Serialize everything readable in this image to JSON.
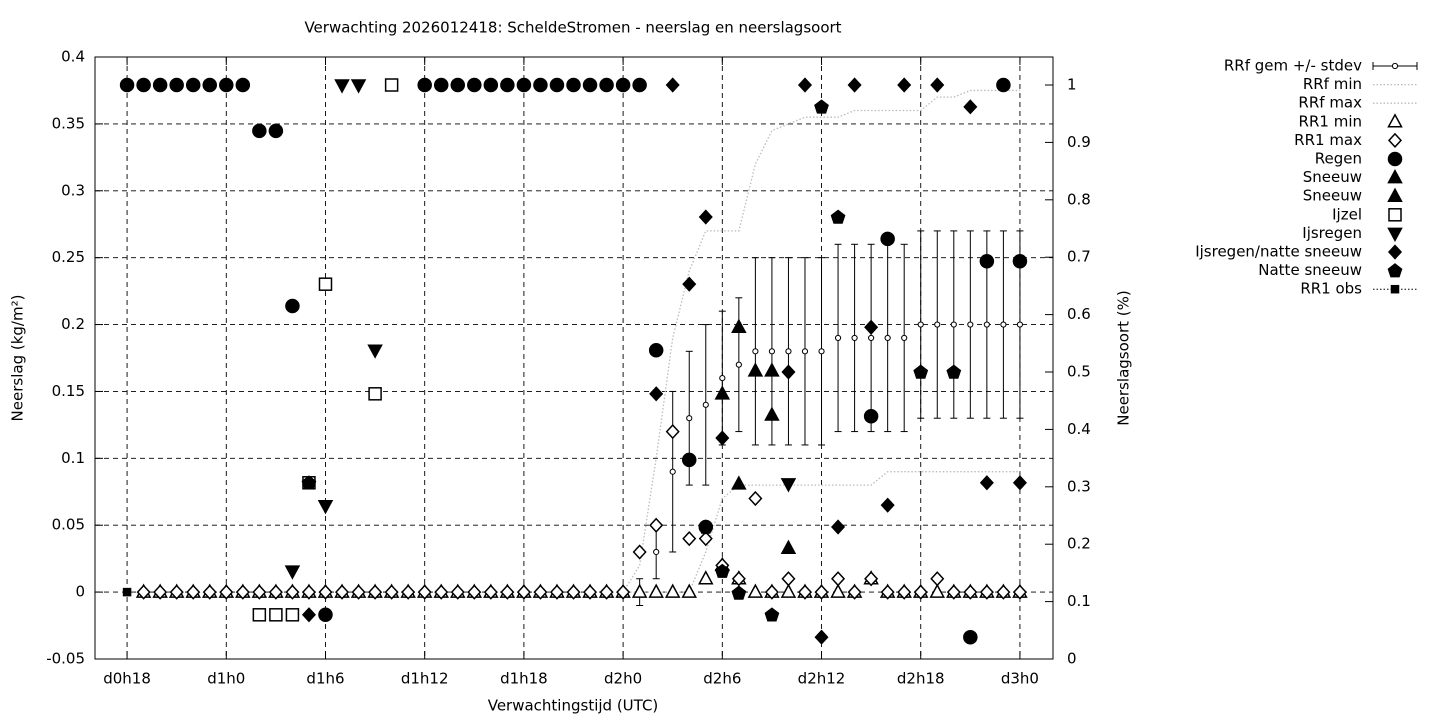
{
  "chart_data": {
    "type": "scatter",
    "title": "Verwachting 2026012418: ScheldeStromen - neerslag en neerslagsoort",
    "x_label": "Verwachtingstijd (UTC)",
    "y_label": "Neerslag (kg/m²)",
    "y2_label": "Neerslagsoort (%)",
    "xlim": [
      16.06,
      74
    ],
    "xticks": [
      {
        "value": 18,
        "label": "d0h18"
      },
      {
        "value": 24,
        "label": "d1h0"
      },
      {
        "value": 30,
        "label": "d1h6"
      },
      {
        "value": 36,
        "label": "d1h12"
      },
      {
        "value": 42,
        "label": "d1h18"
      },
      {
        "value": 48,
        "label": "d2h0"
      },
      {
        "value": 54,
        "label": "d2h6"
      },
      {
        "value": 60,
        "label": "d2h12"
      },
      {
        "value": 66,
        "label": "d2h18"
      },
      {
        "value": 72,
        "label": "d3h0"
      }
    ],
    "ylim": [
      -0.05,
      0.4
    ],
    "yticks": [
      -0.05,
      0,
      0.05,
      0.1,
      0.15,
      0.2,
      0.25,
      0.3,
      0.35,
      0.4
    ],
    "y2lim": [
      0,
      1.0488
    ],
    "y2ticks": [
      0,
      0.1,
      0.2,
      0.3,
      0.4,
      0.5,
      0.6,
      0.7,
      0.8,
      0.9,
      1
    ],
    "grid": true,
    "series": [
      {
        "name": "RRf gem +/- stdev",
        "style": "errorbar",
        "color": "#000000",
        "x": [
          18,
          19,
          20,
          21,
          22,
          23,
          24,
          25,
          26,
          27,
          28,
          29,
          30,
          31,
          32,
          33,
          34,
          35,
          36,
          37,
          38,
          39,
          40,
          41,
          42,
          43,
          44,
          45,
          46,
          47,
          48,
          49,
          50,
          51,
          52,
          53,
          54,
          55,
          56,
          57,
          58,
          59,
          60,
          61,
          62,
          63,
          64,
          65,
          66,
          67,
          68,
          69,
          70,
          71,
          72
        ],
        "values": [
          0,
          0,
          0,
          0,
          0,
          0,
          0,
          0,
          0,
          0,
          0,
          0,
          0,
          0,
          0,
          0,
          0,
          0,
          0,
          0,
          0,
          0,
          0,
          0,
          0,
          0,
          0,
          0,
          0,
          0,
          0,
          0,
          0.03,
          0.09,
          0.13,
          0.14,
          0.16,
          0.17,
          0.18,
          0.18,
          0.18,
          0.18,
          0.18,
          0.19,
          0.19,
          0.19,
          0.19,
          0.19,
          0.2,
          0.2,
          0.2,
          0.2,
          0.2,
          0.2,
          0.2
        ],
        "errors": [
          0,
          0,
          0,
          0,
          0,
          0,
          0,
          0,
          0,
          0,
          0,
          0,
          0,
          0,
          0,
          0,
          0,
          0,
          0,
          0,
          0,
          0,
          0,
          0,
          0,
          0,
          0,
          0,
          0,
          0,
          0,
          0.01,
          0.02,
          0.06,
          0.05,
          0.06,
          0.05,
          0.05,
          0.07,
          0.07,
          0.07,
          0.07,
          0.07,
          0.07,
          0.07,
          0.07,
          0.07,
          0.07,
          0.07,
          0.07,
          0.07,
          0.07,
          0.07,
          0.07,
          0.07
        ]
      },
      {
        "name": "RRf min",
        "style": "line",
        "color": "#bbbbbb",
        "x": [
          48,
          49,
          50,
          51,
          52,
          53,
          54,
          55,
          56,
          57,
          58,
          59,
          60,
          61,
          62,
          63,
          64,
          65,
          66,
          67,
          68,
          69,
          70,
          71,
          72
        ],
        "values": [
          0,
          0,
          0,
          0,
          0,
          0.03,
          0.07,
          0.08,
          0.08,
          0.08,
          0.08,
          0.08,
          0.08,
          0.08,
          0.08,
          0.08,
          0.09,
          0.09,
          0.09,
          0.09,
          0.09,
          0.09,
          0.09,
          0.09,
          0.09
        ]
      },
      {
        "name": "RRf max",
        "style": "line",
        "color": "#bbbbbb",
        "x": [
          48,
          49,
          50,
          51,
          52,
          53,
          54,
          55,
          56,
          57,
          58,
          59,
          60,
          61,
          62,
          63,
          64,
          65,
          66,
          67,
          68,
          69,
          70,
          71,
          72
        ],
        "values": [
          0,
          0.02,
          0.1,
          0.19,
          0.24,
          0.27,
          0.27,
          0.27,
          0.32,
          0.345,
          0.35,
          0.355,
          0.355,
          0.355,
          0.36,
          0.36,
          0.36,
          0.36,
          0.36,
          0.37,
          0.37,
          0.375,
          0.375,
          0.375,
          0.375
        ]
      },
      {
        "name": "RR1 min",
        "style": "points",
        "marker": "triangle-up",
        "filled": false,
        "color": "#000000",
        "x": [
          19,
          20,
          21,
          22,
          23,
          24,
          25,
          26,
          27,
          28,
          29,
          30,
          31,
          32,
          33,
          34,
          35,
          36,
          37,
          38,
          39,
          40,
          41,
          42,
          43,
          44,
          45,
          46,
          47,
          48,
          49,
          50,
          51,
          52,
          53,
          54,
          55,
          56,
          57,
          58,
          59,
          60,
          61,
          62,
          63,
          64,
          65,
          66,
          67,
          68,
          69,
          70,
          71,
          72
        ],
        "values": [
          0,
          0,
          0,
          0,
          0,
          0,
          0,
          0,
          0,
          0,
          0,
          0,
          0,
          0,
          0,
          0,
          0,
          0,
          0,
          0,
          0,
          0,
          0,
          0,
          0,
          0,
          0,
          0,
          0,
          0,
          0,
          0,
          0,
          0,
          0.01,
          0.02,
          0.01,
          0,
          0,
          0,
          0,
          0,
          0,
          0,
          0.01,
          0,
          0,
          0,
          0,
          0,
          0,
          0,
          0,
          0
        ]
      },
      {
        "name": "RR1 max",
        "style": "points",
        "marker": "diamond",
        "filled": false,
        "color": "#000000",
        "x": [
          19,
          20,
          21,
          22,
          23,
          24,
          25,
          26,
          27,
          28,
          29,
          30,
          31,
          32,
          33,
          34,
          35,
          36,
          37,
          38,
          39,
          40,
          41,
          42,
          43,
          44,
          45,
          46,
          47,
          48,
          49,
          50,
          51,
          52,
          53,
          54,
          55,
          56,
          57,
          58,
          59,
          60,
          61,
          62,
          63,
          64,
          65,
          66,
          67,
          68,
          69,
          70,
          71,
          72
        ],
        "values": [
          0,
          0,
          0,
          0,
          0,
          0,
          0,
          0,
          0,
          0,
          0,
          0,
          0,
          0,
          0,
          0,
          0,
          0,
          0,
          0,
          0,
          0,
          0,
          0,
          0,
          0,
          0,
          0,
          0,
          0,
          0.03,
          0.05,
          0.12,
          0.04,
          0.04,
          0.02,
          0.01,
          0.07,
          0,
          0.01,
          0,
          0,
          0.01,
          0,
          0.01,
          0,
          0,
          0,
          0.01,
          0,
          0,
          0,
          0,
          0
        ]
      },
      {
        "name": "Regen",
        "style": "points",
        "marker": "circle",
        "filled": true,
        "axis": "y2",
        "color": "#000000",
        "x": [
          18,
          19,
          20,
          21,
          22,
          23,
          24,
          25,
          26,
          27,
          28,
          30,
          36,
          37,
          38,
          39,
          40,
          41,
          42,
          43,
          44,
          45,
          46,
          47,
          48,
          49,
          50,
          52,
          53,
          63,
          64,
          69,
          70,
          71,
          72
        ],
        "values": [
          1,
          1,
          1,
          1,
          1,
          1,
          1,
          1,
          0.92,
          0.92,
          0.615,
          0.077,
          1,
          1,
          1,
          1,
          1,
          1,
          1,
          1,
          1,
          1,
          1,
          1,
          1,
          1,
          0.538,
          0.347,
          0.23,
          0.423,
          0.732,
          0.038,
          0.693,
          1,
          0.693
        ]
      },
      {
        "name": "Sneeuw",
        "style": "points",
        "marker": "triangle-up",
        "filled": true,
        "axis": "y2",
        "color": "#000000",
        "x": [
          54,
          55,
          56,
          57
        ],
        "values": [
          0.462,
          0.578,
          0.502,
          0.502
        ]
      },
      {
        "name": "Sneeuw",
        "style": "points",
        "marker": "triangle-up",
        "filled": true,
        "axis": "y2",
        "color": "#000000",
        "x": [
          55,
          57,
          58
        ],
        "values": [
          0.305,
          0.425,
          0.193
        ]
      },
      {
        "name": "Ijzel",
        "style": "points",
        "marker": "square",
        "filled": false,
        "axis": "y2",
        "color": "#000000",
        "x": [
          26,
          27,
          28,
          29,
          30,
          33,
          34
        ],
        "values": [
          0.077,
          0.077,
          0.077,
          0.307,
          0.653,
          0.462,
          1
        ]
      },
      {
        "name": "Ijsregen",
        "style": "points",
        "marker": "triangle-down",
        "filled": true,
        "axis": "y2",
        "color": "#000000",
        "x": [
          28,
          30,
          31,
          32,
          33,
          58
        ],
        "values": [
          0.153,
          0.267,
          1,
          1,
          0.538,
          0.305
        ]
      },
      {
        "name": "Ijsregen/natte sneeuw",
        "style": "points",
        "marker": "diamond",
        "filled": true,
        "axis": "y2",
        "color": "#000000",
        "x": [
          29,
          50,
          51,
          52,
          53,
          54,
          58,
          59,
          60,
          61,
          62,
          63,
          64,
          65,
          67,
          69,
          70,
          72
        ],
        "values": [
          0.077,
          0.462,
          1,
          0.653,
          0.77,
          0.385,
          0.5,
          1,
          0.038,
          0.23,
          1,
          0.578,
          0.268,
          1,
          1,
          0.962,
          0.307,
          0.307
        ]
      },
      {
        "name": "Natte sneeuw",
        "style": "points",
        "marker": "pentagon",
        "filled": true,
        "axis": "y2",
        "color": "#000000",
        "x": [
          29,
          53,
          54,
          55,
          57,
          60,
          61,
          66,
          68
        ],
        "values": [
          0.307,
          0.23,
          0.153,
          0.115,
          0.077,
          0.962,
          0.77,
          0.5,
          0.5
        ]
      },
      {
        "name": "RR1 obs",
        "style": "points",
        "marker": "small-square",
        "filled": true,
        "color": "#000000",
        "x": [
          18
        ],
        "values": [
          0
        ]
      }
    ]
  }
}
